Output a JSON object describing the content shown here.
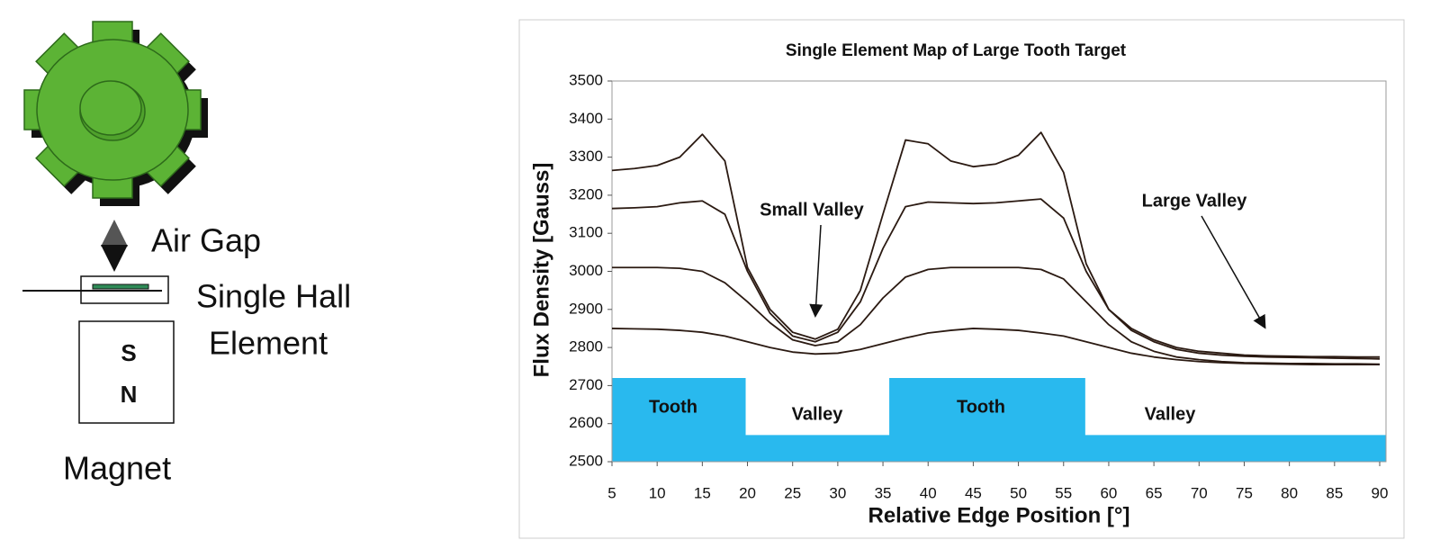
{
  "diagram": {
    "air_gap": "Air Gap",
    "hall_line1": "Single Hall",
    "hall_line2": "Element",
    "pole_s": "S",
    "pole_n": "N",
    "magnet": "Magnet"
  },
  "chart_data": {
    "type": "line",
    "title": "Single Element Map of Large Tooth Target",
    "xlabel": "Relative Edge Position [°]",
    "ylabel": "Flux Density [Gauss]",
    "x": [
      5,
      7.5,
      10,
      12.5,
      15,
      17.5,
      20,
      22.5,
      25,
      27.5,
      30,
      32.5,
      35,
      37.5,
      40,
      42.5,
      45,
      47.5,
      50,
      52.5,
      55,
      57.5,
      60,
      62.5,
      65,
      67.5,
      70,
      72.5,
      75,
      77.5,
      80,
      82.5,
      85,
      87.5,
      90
    ],
    "series": [
      {
        "color": "#2b1a12",
        "values": [
          3265,
          3270,
          3278,
          3300,
          3360,
          3290,
          3010,
          2900,
          2840,
          2822,
          2848,
          2950,
          3150,
          3345,
          3335,
          3290,
          3275,
          3282,
          3305,
          3365,
          3260,
          3020,
          2900,
          2850,
          2820,
          2800,
          2790,
          2785,
          2780,
          2778,
          2777,
          2776,
          2776,
          2775,
          2775
        ]
      },
      {
        "color": "#2b1a12",
        "values": [
          3165,
          3167,
          3170,
          3180,
          3185,
          3150,
          3000,
          2890,
          2830,
          2815,
          2840,
          2920,
          3060,
          3170,
          3182,
          3180,
          3178,
          3180,
          3185,
          3190,
          3140,
          3000,
          2900,
          2845,
          2815,
          2795,
          2785,
          2780,
          2777,
          2775,
          2774,
          2773,
          2772,
          2771,
          2770
        ]
      },
      {
        "color": "#2b1a12",
        "values": [
          3010,
          3010,
          3010,
          3008,
          3000,
          2970,
          2920,
          2865,
          2820,
          2805,
          2815,
          2860,
          2930,
          2985,
          3005,
          3010,
          3010,
          3010,
          3010,
          3005,
          2980,
          2920,
          2860,
          2815,
          2790,
          2775,
          2768,
          2763,
          2760,
          2759,
          2758,
          2758,
          2757,
          2757,
          2756
        ]
      },
      {
        "color": "#2b1a12",
        "values": [
          2850,
          2849,
          2848,
          2845,
          2840,
          2830,
          2815,
          2800,
          2788,
          2783,
          2785,
          2795,
          2810,
          2825,
          2838,
          2845,
          2850,
          2848,
          2845,
          2838,
          2830,
          2815,
          2800,
          2785,
          2775,
          2768,
          2763,
          2760,
          2758,
          2757,
          2756,
          2755,
          2755,
          2755,
          2755
        ]
      }
    ],
    "profile": {
      "color": "#29b9ee",
      "x": [
        5,
        19.8,
        19.8,
        35.7,
        35.7,
        57.4,
        57.4,
        90
      ],
      "values": [
        2720,
        2720,
        2570,
        2570,
        2720,
        2720,
        2570,
        2570
      ]
    },
    "annotations": [
      "Tooth",
      "Valley",
      "Tooth",
      "Valley",
      "Small Valley",
      "Large Valley"
    ],
    "xlim": [
      5,
      90
    ],
    "xticks": [
      5,
      10,
      15,
      20,
      25,
      30,
      35,
      40,
      45,
      50,
      55,
      60,
      65,
      70,
      75,
      80,
      85,
      90
    ],
    "ylim": [
      2500,
      3500
    ],
    "yticks": [
      2500,
      2600,
      2700,
      2800,
      2900,
      3000,
      3100,
      3200,
      3300,
      3400,
      3500
    ],
    "grid": false
  }
}
